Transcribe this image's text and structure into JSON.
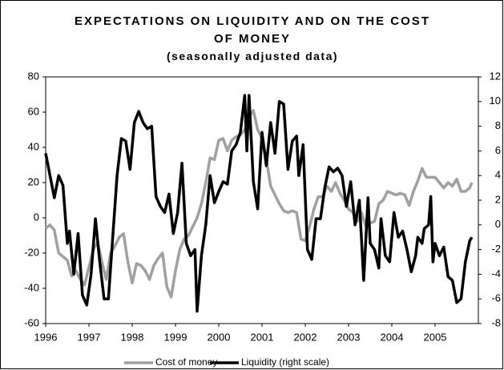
{
  "chart_data": {
    "type": "line",
    "title": "EXPECTATIONS ON LIQUIDITY AND ON THE COST OF MONEY",
    "subtitle": "(seasonally adjusted data)",
    "xlim": [
      1996,
      2006
    ],
    "xticks": [
      1996,
      1997,
      1998,
      1999,
      2000,
      2001,
      2002,
      2003,
      2004,
      2005
    ],
    "ylim": [
      -60,
      80
    ],
    "yticks": [
      -60,
      -40,
      -20,
      0,
      20,
      40,
      60,
      80
    ],
    "y2lim": [
      -8,
      12
    ],
    "y2ticks": [
      -8,
      -6,
      -4,
      -2,
      0,
      2,
      4,
      6,
      8,
      10,
      12
    ],
    "grid": false,
    "legend": "bottom",
    "series": [
      {
        "name": "Cost of money",
        "color": "#a0a0a0",
        "x": [
          1996.0,
          1996.1,
          1996.2,
          1996.3,
          1996.4,
          1996.5,
          1996.6,
          1996.7,
          1996.8,
          1996.9,
          1997.0,
          1997.1,
          1997.2,
          1997.3,
          1997.4,
          1997.5,
          1997.6,
          1997.7,
          1997.8,
          1997.9,
          1998.0,
          1998.1,
          1998.2,
          1998.3,
          1998.4,
          1998.5,
          1998.6,
          1998.7,
          1998.8,
          1998.9,
          1999.0,
          1999.1,
          1999.2,
          1999.3,
          1999.4,
          1999.5,
          1999.6,
          1999.7,
          1999.8,
          1999.9,
          2000.0,
          2000.1,
          2000.2,
          2000.3,
          2000.4,
          2000.5,
          2000.6,
          2000.7,
          2000.8,
          2000.9,
          2001.0,
          2001.1,
          2001.2,
          2001.3,
          2001.4,
          2001.5,
          2001.6,
          2001.7,
          2001.8,
          2001.9,
          2002.0,
          2002.1,
          2002.2,
          2002.3,
          2002.4,
          2002.5,
          2002.6,
          2002.7,
          2002.8,
          2002.9,
          2003.0,
          2003.1,
          2003.2,
          2003.3,
          2003.4,
          2003.5,
          2003.6,
          2003.7,
          2003.8,
          2003.9,
          2004.0,
          2004.1,
          2004.2,
          2004.3,
          2004.4,
          2004.5,
          2004.6,
          2004.7,
          2004.8,
          2004.9,
          2005.0,
          2005.1,
          2005.2,
          2005.3,
          2005.4,
          2005.5,
          2005.6,
          2005.7,
          2005.8,
          2005.85
        ],
        "values": [
          -6,
          -4,
          -7,
          -20,
          -22,
          -24,
          -33,
          -30,
          -35,
          -38,
          -28,
          -18,
          -14,
          -25,
          -35,
          -20,
          -16,
          -11,
          -9,
          -25,
          -37,
          -26,
          -27,
          -30,
          -35,
          -27,
          -23,
          -20,
          -39,
          -45,
          -30,
          -18,
          -12,
          -10,
          -5,
          0,
          8,
          20,
          34,
          33,
          44,
          45,
          38,
          44,
          46,
          47,
          50,
          57,
          61,
          50,
          45,
          33,
          18,
          13,
          8,
          4,
          3,
          4,
          3,
          -12,
          -13,
          -5,
          5,
          12,
          12,
          18,
          15,
          20,
          14,
          10,
          5,
          3,
          -2,
          3,
          -5,
          -3,
          -2,
          8,
          10,
          15,
          14,
          13,
          14,
          13,
          7,
          15,
          21,
          28,
          23,
          23,
          23,
          20,
          17,
          20,
          18,
          22,
          15,
          15,
          17,
          20
        ]
      },
      {
        "name": "Liquidity (right scale)",
        "color": "#000000",
        "axis": "y2",
        "x": [
          1996.0,
          1996.1,
          1996.2,
          1996.3,
          1996.4,
          1996.5,
          1996.55,
          1996.65,
          1996.75,
          1996.85,
          1996.95,
          1997.05,
          1997.15,
          1997.25,
          1997.35,
          1997.45,
          1997.55,
          1997.65,
          1997.75,
          1997.85,
          1997.95,
          1998.05,
          1998.15,
          1998.25,
          1998.35,
          1998.45,
          1998.55,
          1998.65,
          1998.75,
          1998.85,
          1998.95,
          1999.05,
          1999.15,
          1999.25,
          1999.35,
          1999.45,
          1999.5,
          1999.6,
          1999.7,
          1999.8,
          1999.9,
          2000.0,
          2000.1,
          2000.2,
          2000.3,
          2000.4,
          2000.5,
          2000.6,
          2000.65,
          2000.7,
          2000.8,
          2000.9,
          2001.0,
          2001.1,
          2001.2,
          2001.3,
          2001.4,
          2001.5,
          2001.6,
          2001.7,
          2001.8,
          2001.85,
          2001.95,
          2002.05,
          2002.15,
          2002.25,
          2002.35,
          2002.45,
          2002.55,
          2002.65,
          2002.75,
          2002.85,
          2002.95,
          2003.05,
          2003.15,
          2003.25,
          2003.35,
          2003.45,
          2003.5,
          2003.6,
          2003.7,
          2003.75,
          2003.85,
          2003.95,
          2004.05,
          2004.15,
          2004.25,
          2004.35,
          2004.45,
          2004.55,
          2004.6,
          2004.7,
          2004.75,
          2004.85,
          2004.9,
          2004.95,
          2005.0,
          2005.1,
          2005.2,
          2005.3,
          2005.4,
          2005.5,
          2005.6,
          2005.7,
          2005.8,
          2005.85
        ],
        "values": [
          5.8,
          4,
          2.2,
          4,
          3.2,
          -1.5,
          -0.5,
          -4,
          -0.7,
          -5.7,
          -6.5,
          -4,
          0.5,
          -3,
          -6,
          -6,
          -1,
          4,
          7,
          6.8,
          4.5,
          8.3,
          9.2,
          8.3,
          7.8,
          8,
          2.3,
          1.5,
          1,
          2.5,
          -0.7,
          1,
          5,
          -1.5,
          -2.5,
          -2,
          -7,
          -2.5,
          0,
          4,
          1.8,
          2.7,
          3.5,
          3.3,
          6,
          6.5,
          7.5,
          10.5,
          6,
          10.5,
          3.5,
          1.3,
          7.5,
          4.8,
          8.3,
          5.8,
          10,
          9.8,
          4.5,
          6.8,
          7.2,
          4,
          6.5,
          -2,
          -2.8,
          0.5,
          0.5,
          3,
          4.7,
          4.3,
          4.6,
          4,
          1.5,
          3.5,
          0,
          2,
          -4.5,
          2.2,
          -1.5,
          -2,
          -3.5,
          0.5,
          -2.5,
          -3,
          1,
          -1,
          -0.5,
          -2,
          -3.8,
          -2.5,
          -1,
          -1.5,
          -0.3,
          0,
          2.3,
          -3,
          -1.5,
          -2.5,
          -1.8,
          -4.2,
          -4.5,
          -6.3,
          -6,
          -3,
          -1.3,
          -1
        ]
      }
    ]
  }
}
